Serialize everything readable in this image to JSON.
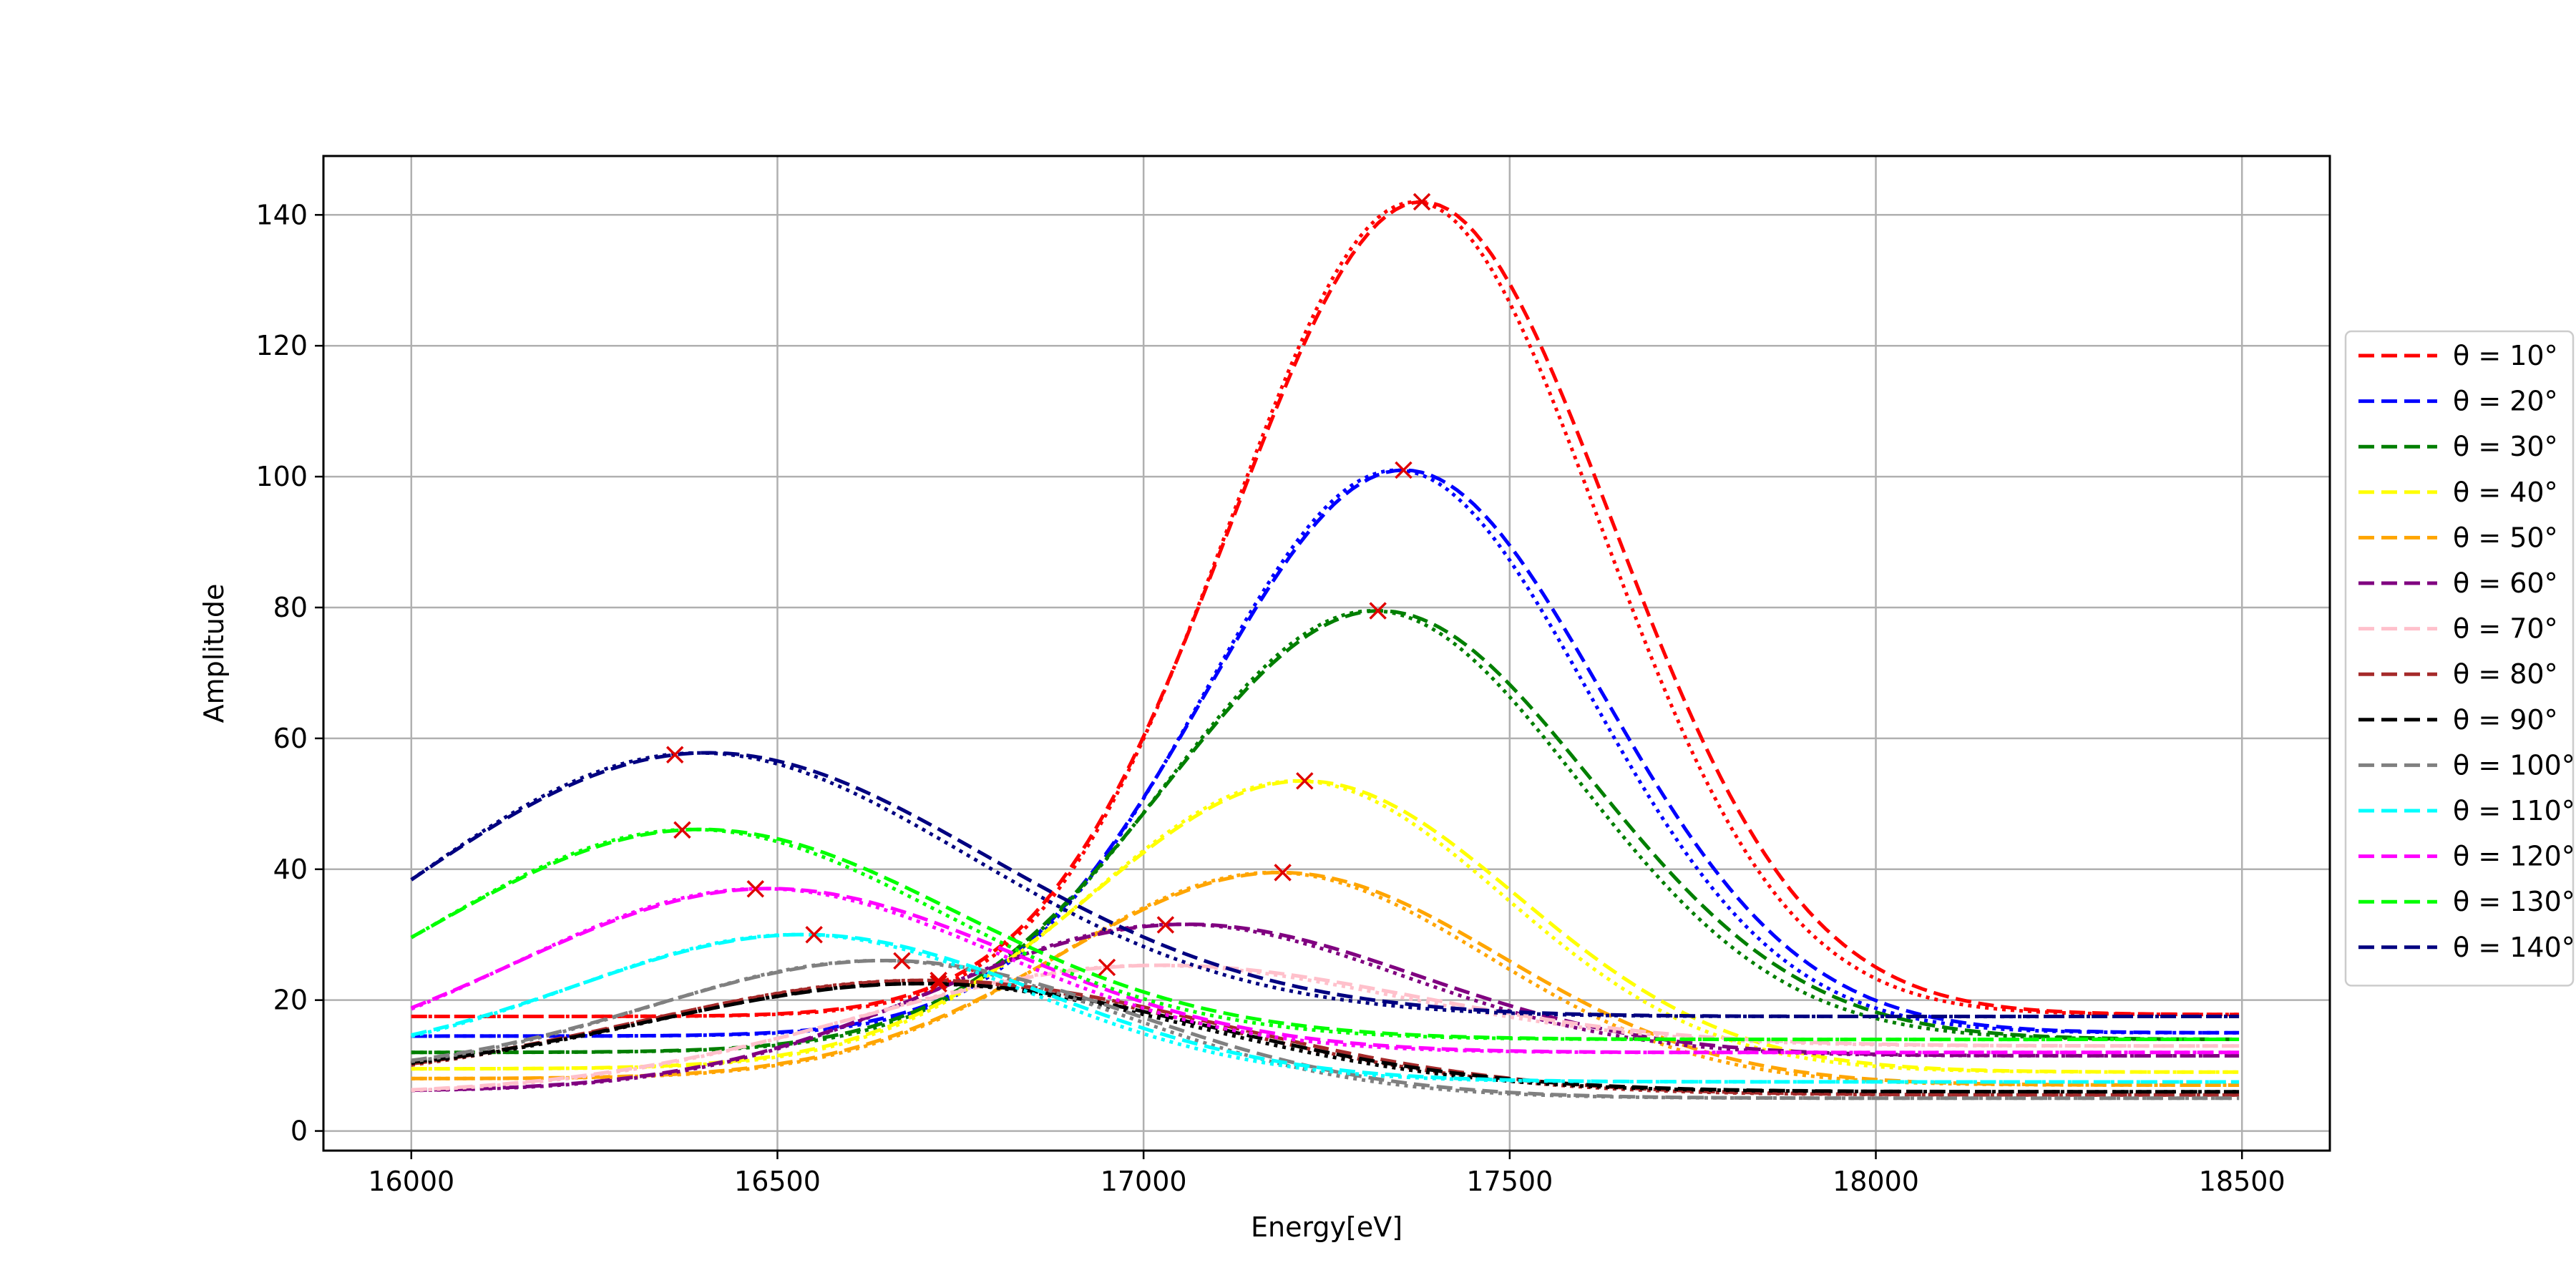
{
  "chart_data": {
    "type": "line",
    "title": "",
    "xlabel": "Energy[eV]",
    "ylabel": "Amplitude",
    "xlim": [
      15880,
      18620
    ],
    "ylim": [
      -3,
      149
    ],
    "xticks": [
      16000,
      16500,
      17000,
      17500,
      18000,
      18500
    ],
    "yticks": [
      0,
      20,
      40,
      60,
      80,
      100,
      120,
      140
    ],
    "grid": true,
    "legend_position": "right-outside",
    "peak_marker": "x",
    "peak_marker_color": "#e00000",
    "series": [
      {
        "name": "θ = 10°",
        "color": "#ff0000",
        "peak_x": 17380,
        "peak_y": 142,
        "sigma": 260,
        "base_left": 17.5,
        "base_right": 17.8
      },
      {
        "name": "θ = 20°",
        "color": "#0000ff",
        "peak_x": 17355,
        "peak_y": 101,
        "sigma": 270,
        "base_left": 14.5,
        "base_right": 15.0
      },
      {
        "name": "θ = 30°",
        "color": "#007f00",
        "peak_x": 17320,
        "peak_y": 79.5,
        "sigma": 290,
        "base_left": 12.0,
        "base_right": 14.0
      },
      {
        "name": "θ = 40°",
        "color": "#ffff00",
        "peak_x": 17220,
        "peak_y": 53.5,
        "sigma": 290,
        "base_left": 9.5,
        "base_right": 9.0
      },
      {
        "name": "θ = 50°",
        "color": "#ffa500",
        "peak_x": 17190,
        "peak_y": 39.5,
        "sigma": 300,
        "base_left": 8.0,
        "base_right": 7.0
      },
      {
        "name": "θ = 60°",
        "color": "#800080",
        "peak_x": 17030,
        "peak_y": 31.5,
        "sigma": 330,
        "base_left": 6.0,
        "base_right": 11.5
      },
      {
        "name": "θ = 70°",
        "color": "#ffc0cb",
        "peak_x": 16950,
        "peak_y": 25.0,
        "sigma": 380,
        "base_left": 5.5,
        "base_right": 13.0
      },
      {
        "name": "θ = 80°",
        "color": "#a52a2a",
        "peak_x": 16720,
        "peak_y": 23.0,
        "sigma": 400,
        "base_left": 7.0,
        "base_right": 5.5
      },
      {
        "name": "θ = 90°",
        "color": "#000000",
        "peak_x": 16720,
        "peak_y": 22.5,
        "sigma": 380,
        "base_left": 8.0,
        "base_right": 6.0
      },
      {
        "name": "θ = 100°",
        "color": "#808080",
        "peak_x": 16670,
        "peak_y": 26.0,
        "sigma": 330,
        "base_left": 8.5,
        "base_right": 5.0
      },
      {
        "name": "θ = 110°",
        "color": "#00ffff",
        "peak_x": 16550,
        "peak_y": 30.0,
        "sigma": 320,
        "base_left": 10.0,
        "base_right": 7.5
      },
      {
        "name": "θ = 120°",
        "color": "#ff00ff",
        "peak_x": 16470,
        "peak_y": 37.0,
        "sigma": 340,
        "base_left": 8.0,
        "base_right": 12.0
      },
      {
        "name": "θ = 130°",
        "color": "#00ff00",
        "peak_x": 16370,
        "peak_y": 46.0,
        "sigma": 360,
        "base_left": 8.0,
        "base_right": 14.0
      },
      {
        "name": "θ = 140°",
        "color": "#000080",
        "peak_x": 16360,
        "peak_y": 57.5,
        "sigma": 400,
        "base_left": 6.0,
        "base_right": 17.5
      }
    ]
  }
}
